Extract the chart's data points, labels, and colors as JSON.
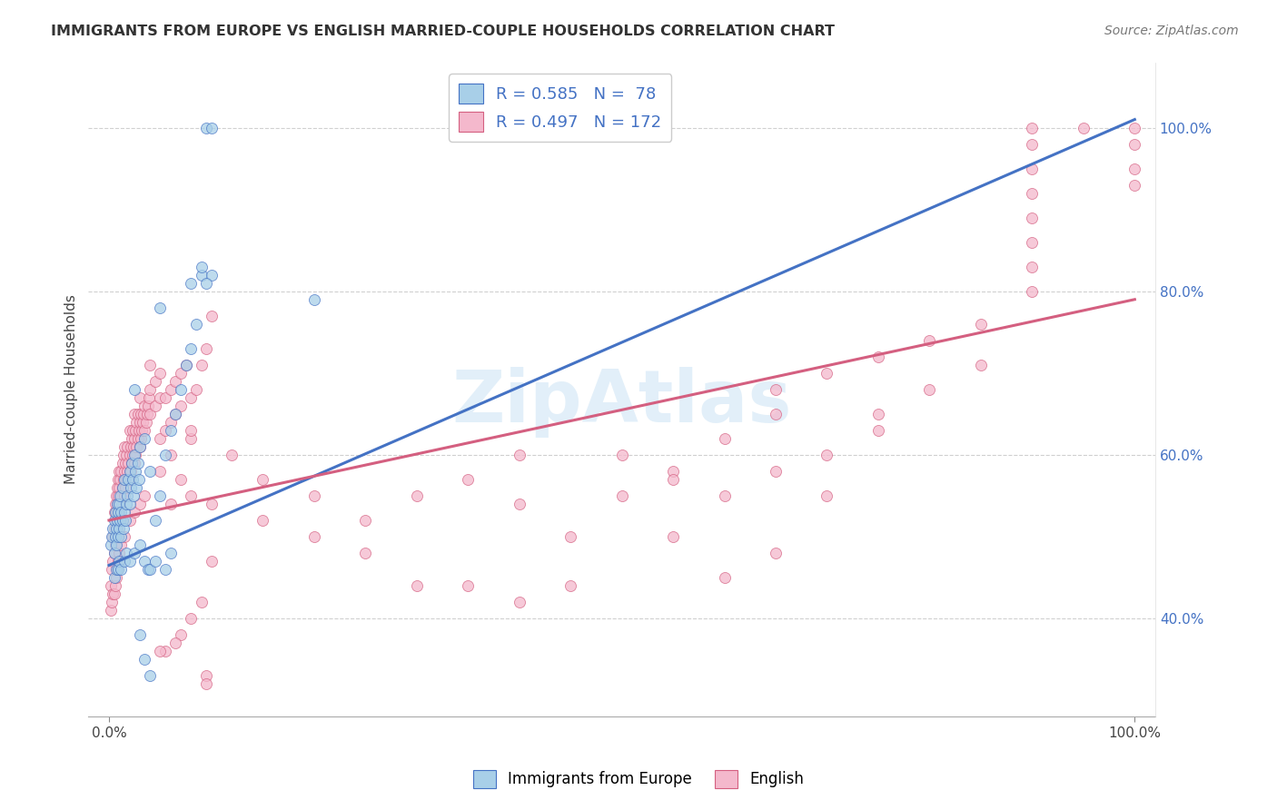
{
  "title": "IMMIGRANTS FROM EUROPE VS ENGLISH MARRIED-COUPLE HOUSEHOLDS CORRELATION CHART",
  "source": "Source: ZipAtlas.com",
  "ylabel": "Married-couple Households",
  "legend_blue_r": "R = 0.585",
  "legend_blue_n": "N =  78",
  "legend_pink_r": "R = 0.497",
  "legend_pink_n": "N = 172",
  "legend_label_blue": "Immigrants from Europe",
  "legend_label_pink": "English",
  "watermark": "ZipAtlas",
  "blue_color": "#a8cfe8",
  "pink_color": "#f4b8cc",
  "blue_line_color": "#4472c4",
  "pink_line_color": "#d45f80",
  "blue_scatter": [
    [
      0.2,
      49
    ],
    [
      0.3,
      50
    ],
    [
      0.4,
      51
    ],
    [
      0.5,
      48
    ],
    [
      0.5,
      52
    ],
    [
      0.6,
      50
    ],
    [
      0.6,
      53
    ],
    [
      0.7,
      49
    ],
    [
      0.7,
      51
    ],
    [
      0.8,
      52
    ],
    [
      0.8,
      54
    ],
    [
      0.9,
      50
    ],
    [
      0.9,
      53
    ],
    [
      1.0,
      51
    ],
    [
      1.0,
      54
    ],
    [
      1.1,
      52
    ],
    [
      1.1,
      55
    ],
    [
      1.2,
      50
    ],
    [
      1.2,
      53
    ],
    [
      1.3,
      52
    ],
    [
      1.3,
      56
    ],
    [
      1.4,
      51
    ],
    [
      1.5,
      53
    ],
    [
      1.5,
      57
    ],
    [
      1.6,
      52
    ],
    [
      1.7,
      54
    ],
    [
      1.8,
      55
    ],
    [
      1.9,
      57
    ],
    [
      2.0,
      54
    ],
    [
      2.0,
      58
    ],
    [
      2.1,
      56
    ],
    [
      2.2,
      59
    ],
    [
      2.3,
      57
    ],
    [
      2.4,
      55
    ],
    [
      2.5,
      60
    ],
    [
      2.5,
      68
    ],
    [
      2.6,
      58
    ],
    [
      2.7,
      56
    ],
    [
      2.8,
      59
    ],
    [
      2.9,
      57
    ],
    [
      3.0,
      61
    ],
    [
      3.5,
      62
    ],
    [
      4.0,
      58
    ],
    [
      4.5,
      52
    ],
    [
      5.0,
      55
    ],
    [
      5.0,
      78
    ],
    [
      5.5,
      60
    ],
    [
      6.0,
      63
    ],
    [
      6.5,
      65
    ],
    [
      7.0,
      68
    ],
    [
      7.5,
      71
    ],
    [
      8.0,
      73
    ],
    [
      8.5,
      76
    ],
    [
      9.0,
      82
    ],
    [
      9.5,
      100
    ],
    [
      10.0,
      100
    ],
    [
      0.5,
      45
    ],
    [
      0.7,
      46
    ],
    [
      0.9,
      46
    ],
    [
      1.0,
      47
    ],
    [
      1.2,
      46
    ],
    [
      1.5,
      47
    ],
    [
      1.7,
      48
    ],
    [
      2.0,
      47
    ],
    [
      2.5,
      48
    ],
    [
      3.0,
      49
    ],
    [
      3.5,
      47
    ],
    [
      3.8,
      46
    ],
    [
      4.0,
      46
    ],
    [
      4.5,
      47
    ],
    [
      5.5,
      46
    ],
    [
      6.0,
      48
    ],
    [
      3.0,
      38
    ],
    [
      3.5,
      35
    ],
    [
      4.0,
      33
    ],
    [
      8.0,
      81
    ],
    [
      9.0,
      83
    ],
    [
      10.0,
      82
    ],
    [
      9.5,
      81
    ],
    [
      20.0,
      79
    ]
  ],
  "pink_scatter": [
    [
      0.2,
      44
    ],
    [
      0.3,
      46
    ],
    [
      0.4,
      47
    ],
    [
      0.4,
      50
    ],
    [
      0.5,
      48
    ],
    [
      0.5,
      51
    ],
    [
      0.5,
      53
    ],
    [
      0.6,
      49
    ],
    [
      0.6,
      52
    ],
    [
      0.6,
      54
    ],
    [
      0.7,
      50
    ],
    [
      0.7,
      53
    ],
    [
      0.7,
      55
    ],
    [
      0.8,
      51
    ],
    [
      0.8,
      54
    ],
    [
      0.8,
      56
    ],
    [
      0.9,
      52
    ],
    [
      0.9,
      55
    ],
    [
      0.9,
      57
    ],
    [
      1.0,
      53
    ],
    [
      1.0,
      56
    ],
    [
      1.0,
      58
    ],
    [
      1.1,
      54
    ],
    [
      1.1,
      57
    ],
    [
      1.2,
      55
    ],
    [
      1.2,
      58
    ],
    [
      1.3,
      56
    ],
    [
      1.3,
      59
    ],
    [
      1.4,
      57
    ],
    [
      1.4,
      60
    ],
    [
      1.5,
      55
    ],
    [
      1.5,
      58
    ],
    [
      1.5,
      61
    ],
    [
      1.6,
      56
    ],
    [
      1.6,
      59
    ],
    [
      1.7,
      57
    ],
    [
      1.7,
      60
    ],
    [
      1.8,
      58
    ],
    [
      1.8,
      61
    ],
    [
      1.9,
      59
    ],
    [
      2.0,
      57
    ],
    [
      2.0,
      60
    ],
    [
      2.0,
      63
    ],
    [
      2.1,
      58
    ],
    [
      2.1,
      61
    ],
    [
      2.2,
      59
    ],
    [
      2.2,
      62
    ],
    [
      2.3,
      60
    ],
    [
      2.3,
      63
    ],
    [
      2.4,
      61
    ],
    [
      2.5,
      59
    ],
    [
      2.5,
      62
    ],
    [
      2.5,
      65
    ],
    [
      2.6,
      60
    ],
    [
      2.6,
      63
    ],
    [
      2.7,
      61
    ],
    [
      2.7,
      64
    ],
    [
      2.8,
      62
    ],
    [
      2.8,
      65
    ],
    [
      2.9,
      63
    ],
    [
      3.0,
      61
    ],
    [
      3.0,
      64
    ],
    [
      3.0,
      67
    ],
    [
      3.1,
      62
    ],
    [
      3.1,
      65
    ],
    [
      3.2,
      63
    ],
    [
      3.3,
      64
    ],
    [
      3.4,
      65
    ],
    [
      3.5,
      63
    ],
    [
      3.5,
      66
    ],
    [
      3.6,
      64
    ],
    [
      3.7,
      65
    ],
    [
      3.8,
      66
    ],
    [
      3.9,
      67
    ],
    [
      4.0,
      65
    ],
    [
      4.0,
      68
    ],
    [
      4.0,
      71
    ],
    [
      4.5,
      66
    ],
    [
      4.5,
      69
    ],
    [
      5.0,
      58
    ],
    [
      5.0,
      62
    ],
    [
      5.0,
      67
    ],
    [
      5.0,
      70
    ],
    [
      5.5,
      63
    ],
    [
      5.5,
      67
    ],
    [
      6.0,
      60
    ],
    [
      6.0,
      64
    ],
    [
      6.0,
      68
    ],
    [
      6.5,
      65
    ],
    [
      6.5,
      69
    ],
    [
      7.0,
      66
    ],
    [
      7.0,
      70
    ],
    [
      7.5,
      71
    ],
    [
      8.0,
      62
    ],
    [
      8.0,
      67
    ],
    [
      8.5,
      68
    ],
    [
      9.0,
      71
    ],
    [
      9.5,
      73
    ],
    [
      10.0,
      77
    ],
    [
      0.2,
      41
    ],
    [
      0.3,
      42
    ],
    [
      0.4,
      43
    ],
    [
      0.5,
      43
    ],
    [
      0.6,
      44
    ],
    [
      0.7,
      45
    ],
    [
      0.8,
      46
    ],
    [
      0.9,
      47
    ],
    [
      1.0,
      48
    ],
    [
      1.2,
      49
    ],
    [
      1.5,
      50
    ],
    [
      2.0,
      52
    ],
    [
      2.5,
      53
    ],
    [
      3.0,
      54
    ],
    [
      3.5,
      55
    ],
    [
      5.5,
      36
    ],
    [
      7.0,
      38
    ],
    [
      8.0,
      40
    ],
    [
      9.5,
      33
    ],
    [
      5.0,
      36
    ],
    [
      6.5,
      37
    ],
    [
      9.5,
      32
    ],
    [
      6.0,
      54
    ],
    [
      7.0,
      57
    ],
    [
      8.0,
      55
    ],
    [
      9.0,
      42
    ],
    [
      10.0,
      47
    ],
    [
      65.0,
      68
    ],
    [
      70.0,
      70
    ],
    [
      75.0,
      72
    ],
    [
      80.0,
      74
    ],
    [
      85.0,
      76
    ],
    [
      90.0,
      80
    ],
    [
      90.0,
      83
    ],
    [
      90.0,
      86
    ],
    [
      90.0,
      89
    ],
    [
      90.0,
      92
    ],
    [
      90.0,
      95
    ],
    [
      90.0,
      98
    ],
    [
      90.0,
      100
    ],
    [
      95.0,
      100
    ],
    [
      100.0,
      100
    ],
    [
      100.0,
      98
    ],
    [
      100.0,
      95
    ],
    [
      100.0,
      93
    ],
    [
      75.0,
      65
    ],
    [
      80.0,
      68
    ],
    [
      85.0,
      71
    ],
    [
      60.0,
      62
    ],
    [
      65.0,
      65
    ],
    [
      70.0,
      60
    ],
    [
      75.0,
      63
    ],
    [
      55.0,
      58
    ],
    [
      60.0,
      55
    ],
    [
      65.0,
      58
    ],
    [
      70.0,
      55
    ],
    [
      50.0,
      55
    ],
    [
      55.0,
      50
    ],
    [
      60.0,
      45
    ],
    [
      65.0,
      48
    ],
    [
      50.0,
      60
    ],
    [
      55.0,
      57
    ],
    [
      40.0,
      54
    ],
    [
      45.0,
      50
    ],
    [
      40.0,
      42
    ],
    [
      45.0,
      44
    ],
    [
      35.0,
      44
    ],
    [
      30.0,
      44
    ],
    [
      25.0,
      52
    ],
    [
      30.0,
      55
    ],
    [
      35.0,
      57
    ],
    [
      40.0,
      60
    ],
    [
      20.0,
      50
    ],
    [
      25.0,
      48
    ],
    [
      15.0,
      52
    ],
    [
      20.0,
      55
    ],
    [
      10.0,
      54
    ],
    [
      15.0,
      57
    ],
    [
      12.0,
      60
    ],
    [
      8.0,
      63
    ]
  ],
  "blue_line_y_start": 46.5,
  "blue_line_y_end": 101.0,
  "pink_line_y_start": 52.0,
  "pink_line_y_end": 79.0,
  "xlim": [
    -2,
    102
  ],
  "ylim": [
    28,
    108
  ],
  "yticks": [
    40,
    60,
    80,
    100
  ],
  "background_color": "#ffffff",
  "grid_color": "#d0d0d0",
  "title_color": "#333333",
  "source_color": "#777777",
  "tick_color": "#4472c4"
}
